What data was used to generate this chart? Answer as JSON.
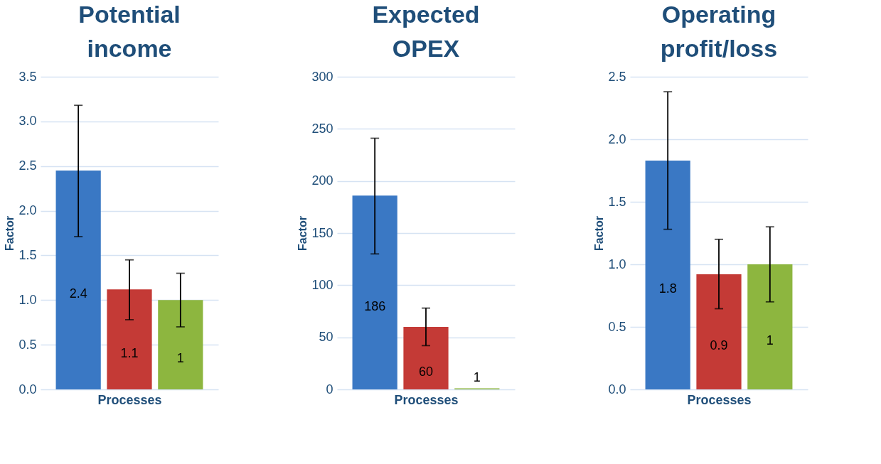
{
  "chart_data": [
    {
      "type": "bar",
      "title": "Potential income",
      "xlabel": "Processes",
      "ylabel": "Factor",
      "categories": [
        null,
        null,
        null
      ],
      "values": [
        2.45,
        1.12,
        1.0
      ],
      "colors": [
        "#3a78c4",
        "#c43a36",
        "#8db63f"
      ],
      "value_labels": [
        "2.4",
        "1.1",
        "1"
      ],
      "errors": [
        [
          1.71,
          3.18
        ],
        [
          0.78,
          1.45
        ],
        [
          0.7,
          1.3
        ]
      ],
      "ylim": [
        0,
        3.5
      ],
      "yticks": [
        {
          "value": 0,
          "label": "0.0"
        },
        {
          "value": 0.5,
          "label": "0.5"
        },
        {
          "value": 1,
          "label": "1.0"
        },
        {
          "value": 1.5,
          "label": "1.5"
        },
        {
          "value": 2,
          "label": "2.0"
        },
        {
          "value": 2.5,
          "label": "2.5"
        },
        {
          "value": 3,
          "label": "3.0"
        },
        {
          "value": 3.5,
          "label": "3.5"
        }
      ],
      "grid": "y",
      "tick_labels": "y"
    },
    {
      "type": "bar",
      "title": "Expected OPEX",
      "xlabel": "Processes",
      "ylabel": "Factor",
      "categories": [
        null,
        null,
        null
      ],
      "values": [
        186,
        60,
        1
      ],
      "colors": [
        "#3a78c4",
        "#c43a36",
        "#8db63f"
      ],
      "value_labels": [
        "186",
        "60",
        "1"
      ],
      "errors": [
        [
          130,
          241
        ],
        [
          42,
          78
        ],
        null
      ],
      "ylim": [
        0,
        300
      ],
      "yticks": [
        0,
        50,
        100,
        150,
        200,
        250,
        300
      ],
      "grid": "y",
      "tick_labels": "y"
    },
    {
      "type": "bar",
      "title": "Operating profit/loss",
      "xlabel": "Processes",
      "ylabel": "Factor",
      "categories": [
        null,
        null,
        null
      ],
      "values": [
        1.83,
        0.92,
        1.0
      ],
      "colors": [
        "#3a78c4",
        "#c43a36",
        "#8db63f"
      ],
      "value_labels": [
        "1.8",
        "0.9",
        "1"
      ],
      "errors": [
        [
          1.28,
          2.38
        ],
        [
          0.645,
          1.2
        ],
        [
          0.7,
          1.3
        ]
      ],
      "ylim": [
        0,
        2.5
      ],
      "yticks": [
        {
          "value": 0,
          "label": "0.0"
        },
        {
          "value": 0.5,
          "label": "0.5"
        },
        {
          "value": 1,
          "label": "1.0"
        },
        {
          "value": 1.5,
          "label": "1.5"
        },
        {
          "value": 2,
          "label": "2.0"
        },
        {
          "value": 2.5,
          "label": "2.5"
        }
      ],
      "grid": "y",
      "tick_labels": "y"
    }
  ]
}
